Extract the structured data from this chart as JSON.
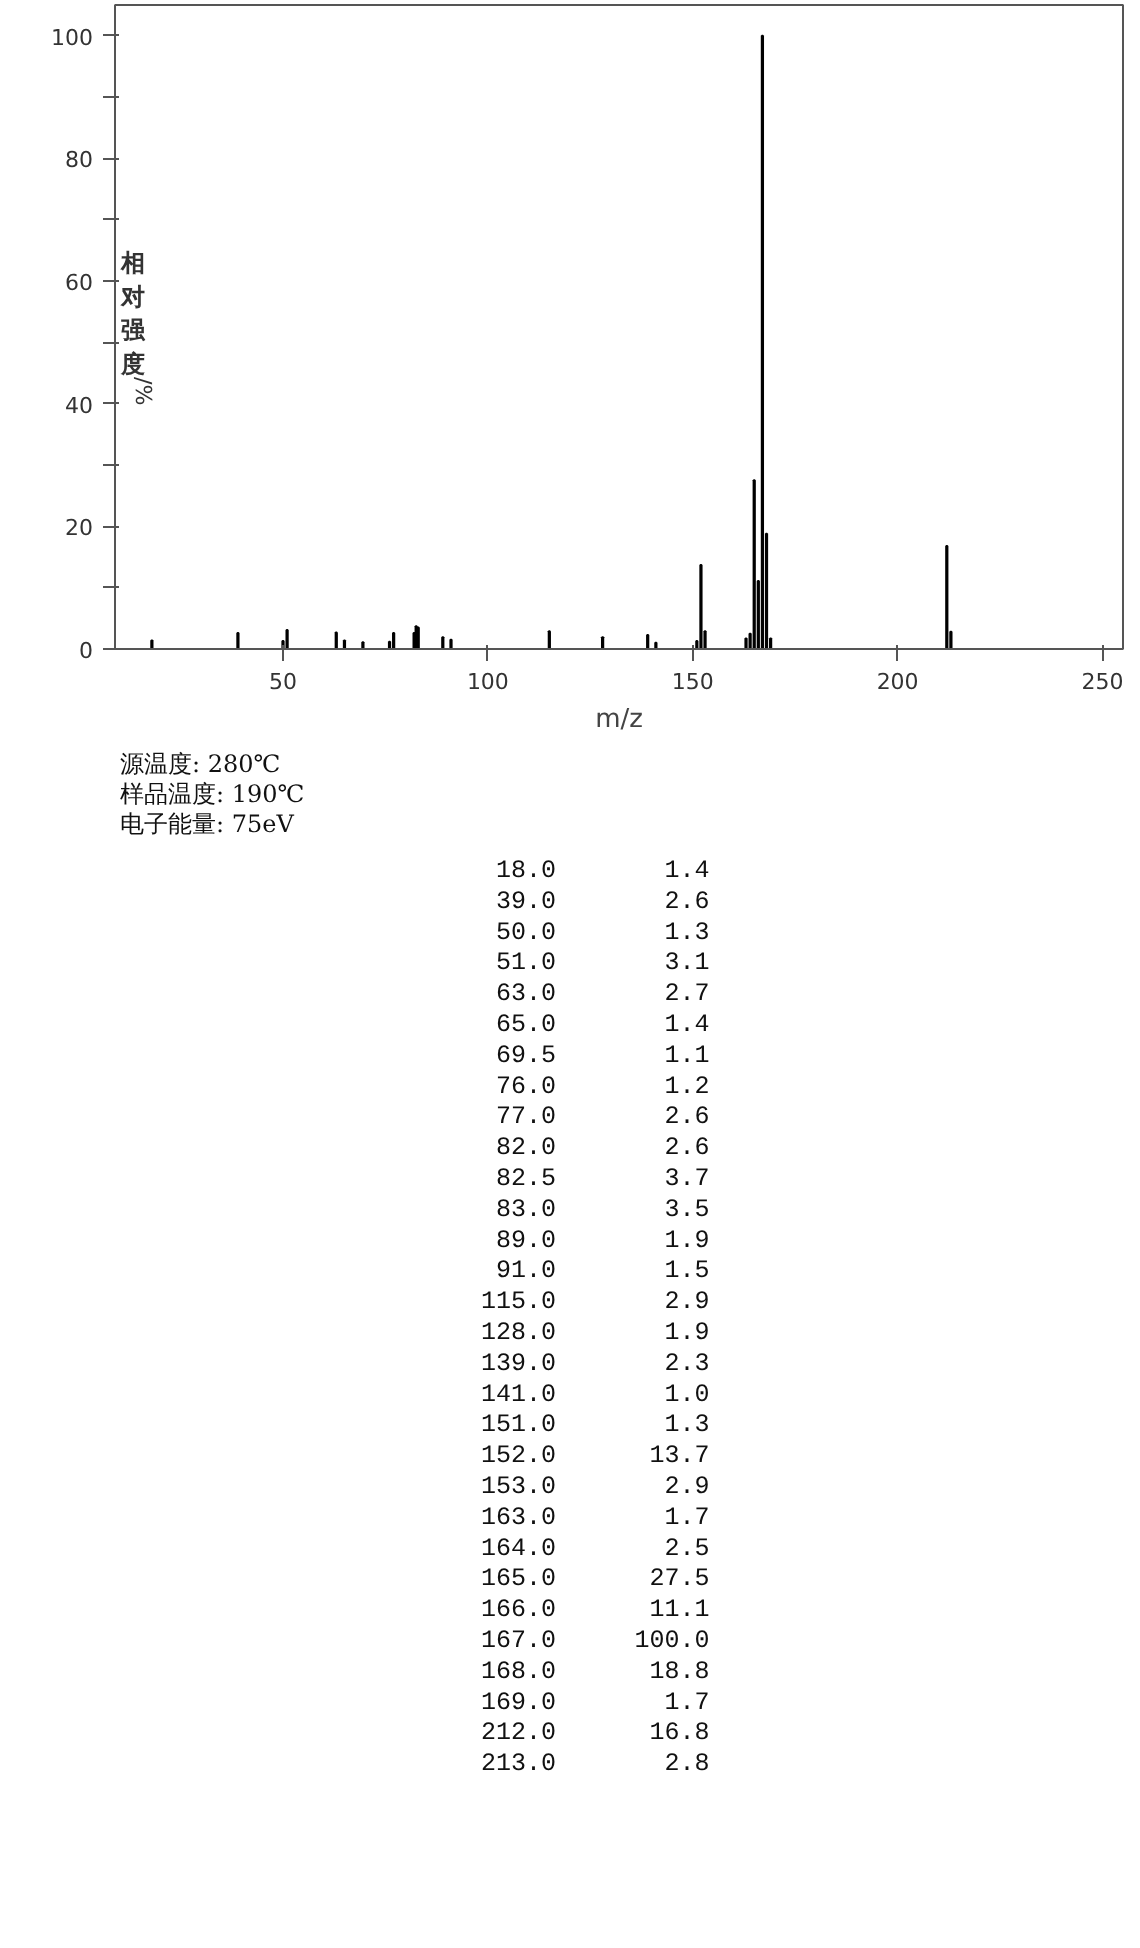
{
  "chart_data": {
    "type": "bar",
    "xlabel": "m/z",
    "ylabel": "相对强度/%",
    "x": [
      18.0,
      39.0,
      50.0,
      51.0,
      63.0,
      65.0,
      69.5,
      76.0,
      77.0,
      82.0,
      82.5,
      83.0,
      89.0,
      91.0,
      115.0,
      128.0,
      139.0,
      141.0,
      151.0,
      152.0,
      153.0,
      163.0,
      164.0,
      165.0,
      166.0,
      167.0,
      168.0,
      169.0,
      212.0,
      213.0
    ],
    "values": [
      1.4,
      2.6,
      1.3,
      3.1,
      2.7,
      1.4,
      1.1,
      1.2,
      2.6,
      2.6,
      3.7,
      3.5,
      1.9,
      1.5,
      2.9,
      1.9,
      2.3,
      1.0,
      1.3,
      13.7,
      2.9,
      1.7,
      2.5,
      27.5,
      11.1,
      100.0,
      18.8,
      1.7,
      16.8,
      2.8
    ],
    "color": "#000000",
    "xlim": [
      9,
      255
    ],
    "xticks": [
      50,
      100,
      150,
      200,
      250
    ],
    "ylim": [
      0,
      105
    ],
    "yticks": [
      0,
      {
        "value": 10,
        "label": null
      },
      20,
      {
        "value": 30,
        "label": null
      },
      40,
      {
        "value": 50,
        "label": null
      },
      60,
      {
        "value": 70,
        "label": null
      },
      80,
      {
        "value": 90,
        "label": null
      },
      100
    ],
    "annotations": [
      "源温度: 280℃",
      "样品温度: 190℃",
      "电子能量: 75eV",
      "18.0",
      "1.4",
      "39.0",
      "2.6",
      "50.0",
      "1.3",
      "51.0",
      "3.1",
      "63.0",
      "2.7",
      "65.0",
      "1.4",
      "69.5",
      "1.1",
      "76.0",
      "1.2",
      "77.0",
      "2.6",
      "82.0",
      "2.6",
      "82.5",
      "3.7",
      "83.0",
      "3.5",
      "89.0",
      "1.9",
      "91.0",
      "1.5",
      "115.0",
      "2.9",
      "128.0",
      "1.9",
      "139.0",
      "2.3",
      "141.0",
      "1.0",
      "151.0",
      "1.3",
      "152.0",
      "13.7",
      "153.0",
      "2.9",
      "163.0",
      "1.7",
      "164.0",
      "2.5",
      "165.0",
      "27.5",
      "166.0",
      "11.1",
      "167.0",
      "100.0",
      "168.0",
      "18.8",
      "169.0",
      "1.7",
      "212.0",
      "16.8",
      "213.0",
      "2.8"
    ]
  }
}
